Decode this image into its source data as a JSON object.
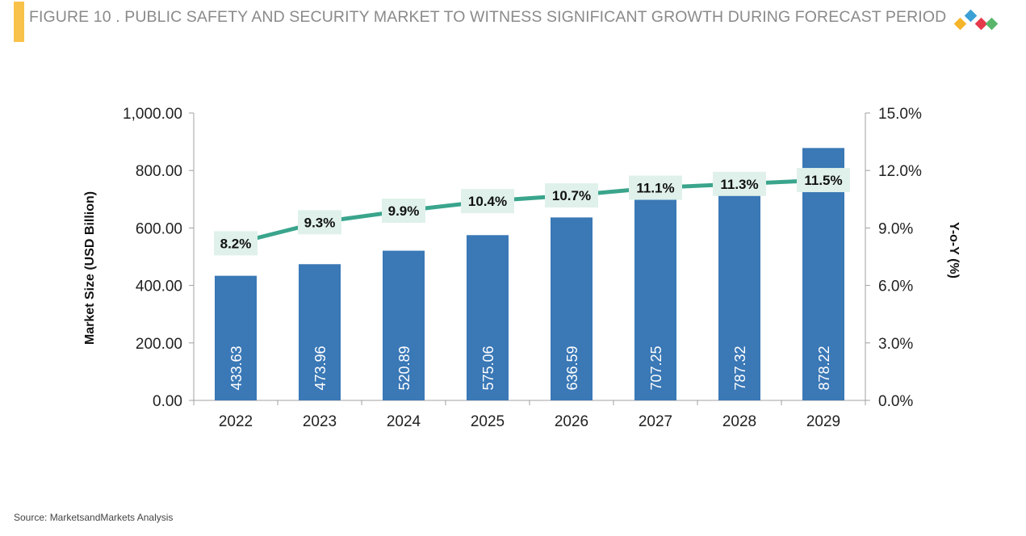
{
  "header": {
    "title": "FIGURE 10 . PUBLIC SAFETY AND SECURITY MARKET TO WITNESS SIGNIFICANT GROWTH DURING FORECAST PERIOD",
    "accent_color": "#f8c24a"
  },
  "logo": {
    "icon": "marketsandmarkets-diamond-logo-icon",
    "colors": [
      "#f5b52a",
      "#3aa0d6",
      "#e53a4b",
      "#58b66a"
    ]
  },
  "footer": {
    "source": "Source: MarketsandMarkets Analysis"
  },
  "chart_data": {
    "type": "bar",
    "categories": [
      "2022",
      "2023",
      "2024",
      "2025",
      "2026",
      "2027",
      "2028",
      "2029"
    ],
    "series": [
      {
        "type": "bar",
        "axis": "left",
        "color": "#3a78b6",
        "values": [
          433.63,
          473.96,
          520.89,
          575.06,
          636.59,
          707.25,
          787.32,
          878.22
        ],
        "labels": [
          "433.63",
          "473.96",
          "520.89",
          "575.06",
          "636.59",
          "707.25",
          "787.32",
          "878.22"
        ]
      },
      {
        "type": "line",
        "axis": "right",
        "color": "#3aa58c",
        "label_bg": "#dff1ea",
        "values": [
          8.2,
          9.3,
          9.9,
          10.4,
          10.7,
          11.1,
          11.3,
          11.5
        ],
        "labels": [
          "8.2%",
          "9.3%",
          "9.9%",
          "10.4%",
          "10.7%",
          "11.1%",
          "11.3%",
          "11.5%"
        ]
      }
    ],
    "ylabel": "Market Size (USD Billion)",
    "y2label": "Y-o-Y (%)",
    "ylim": [
      0,
      1000
    ],
    "y2lim": [
      0,
      15
    ],
    "yticks": [
      "0.00",
      "200.00",
      "400.00",
      "600.00",
      "800.00",
      "1,000.00"
    ],
    "y2ticks": [
      "0.0%",
      "3.0%",
      "6.0%",
      "9.0%",
      "12.0%",
      "15.0%"
    ],
    "grid": false,
    "legend": "none"
  }
}
